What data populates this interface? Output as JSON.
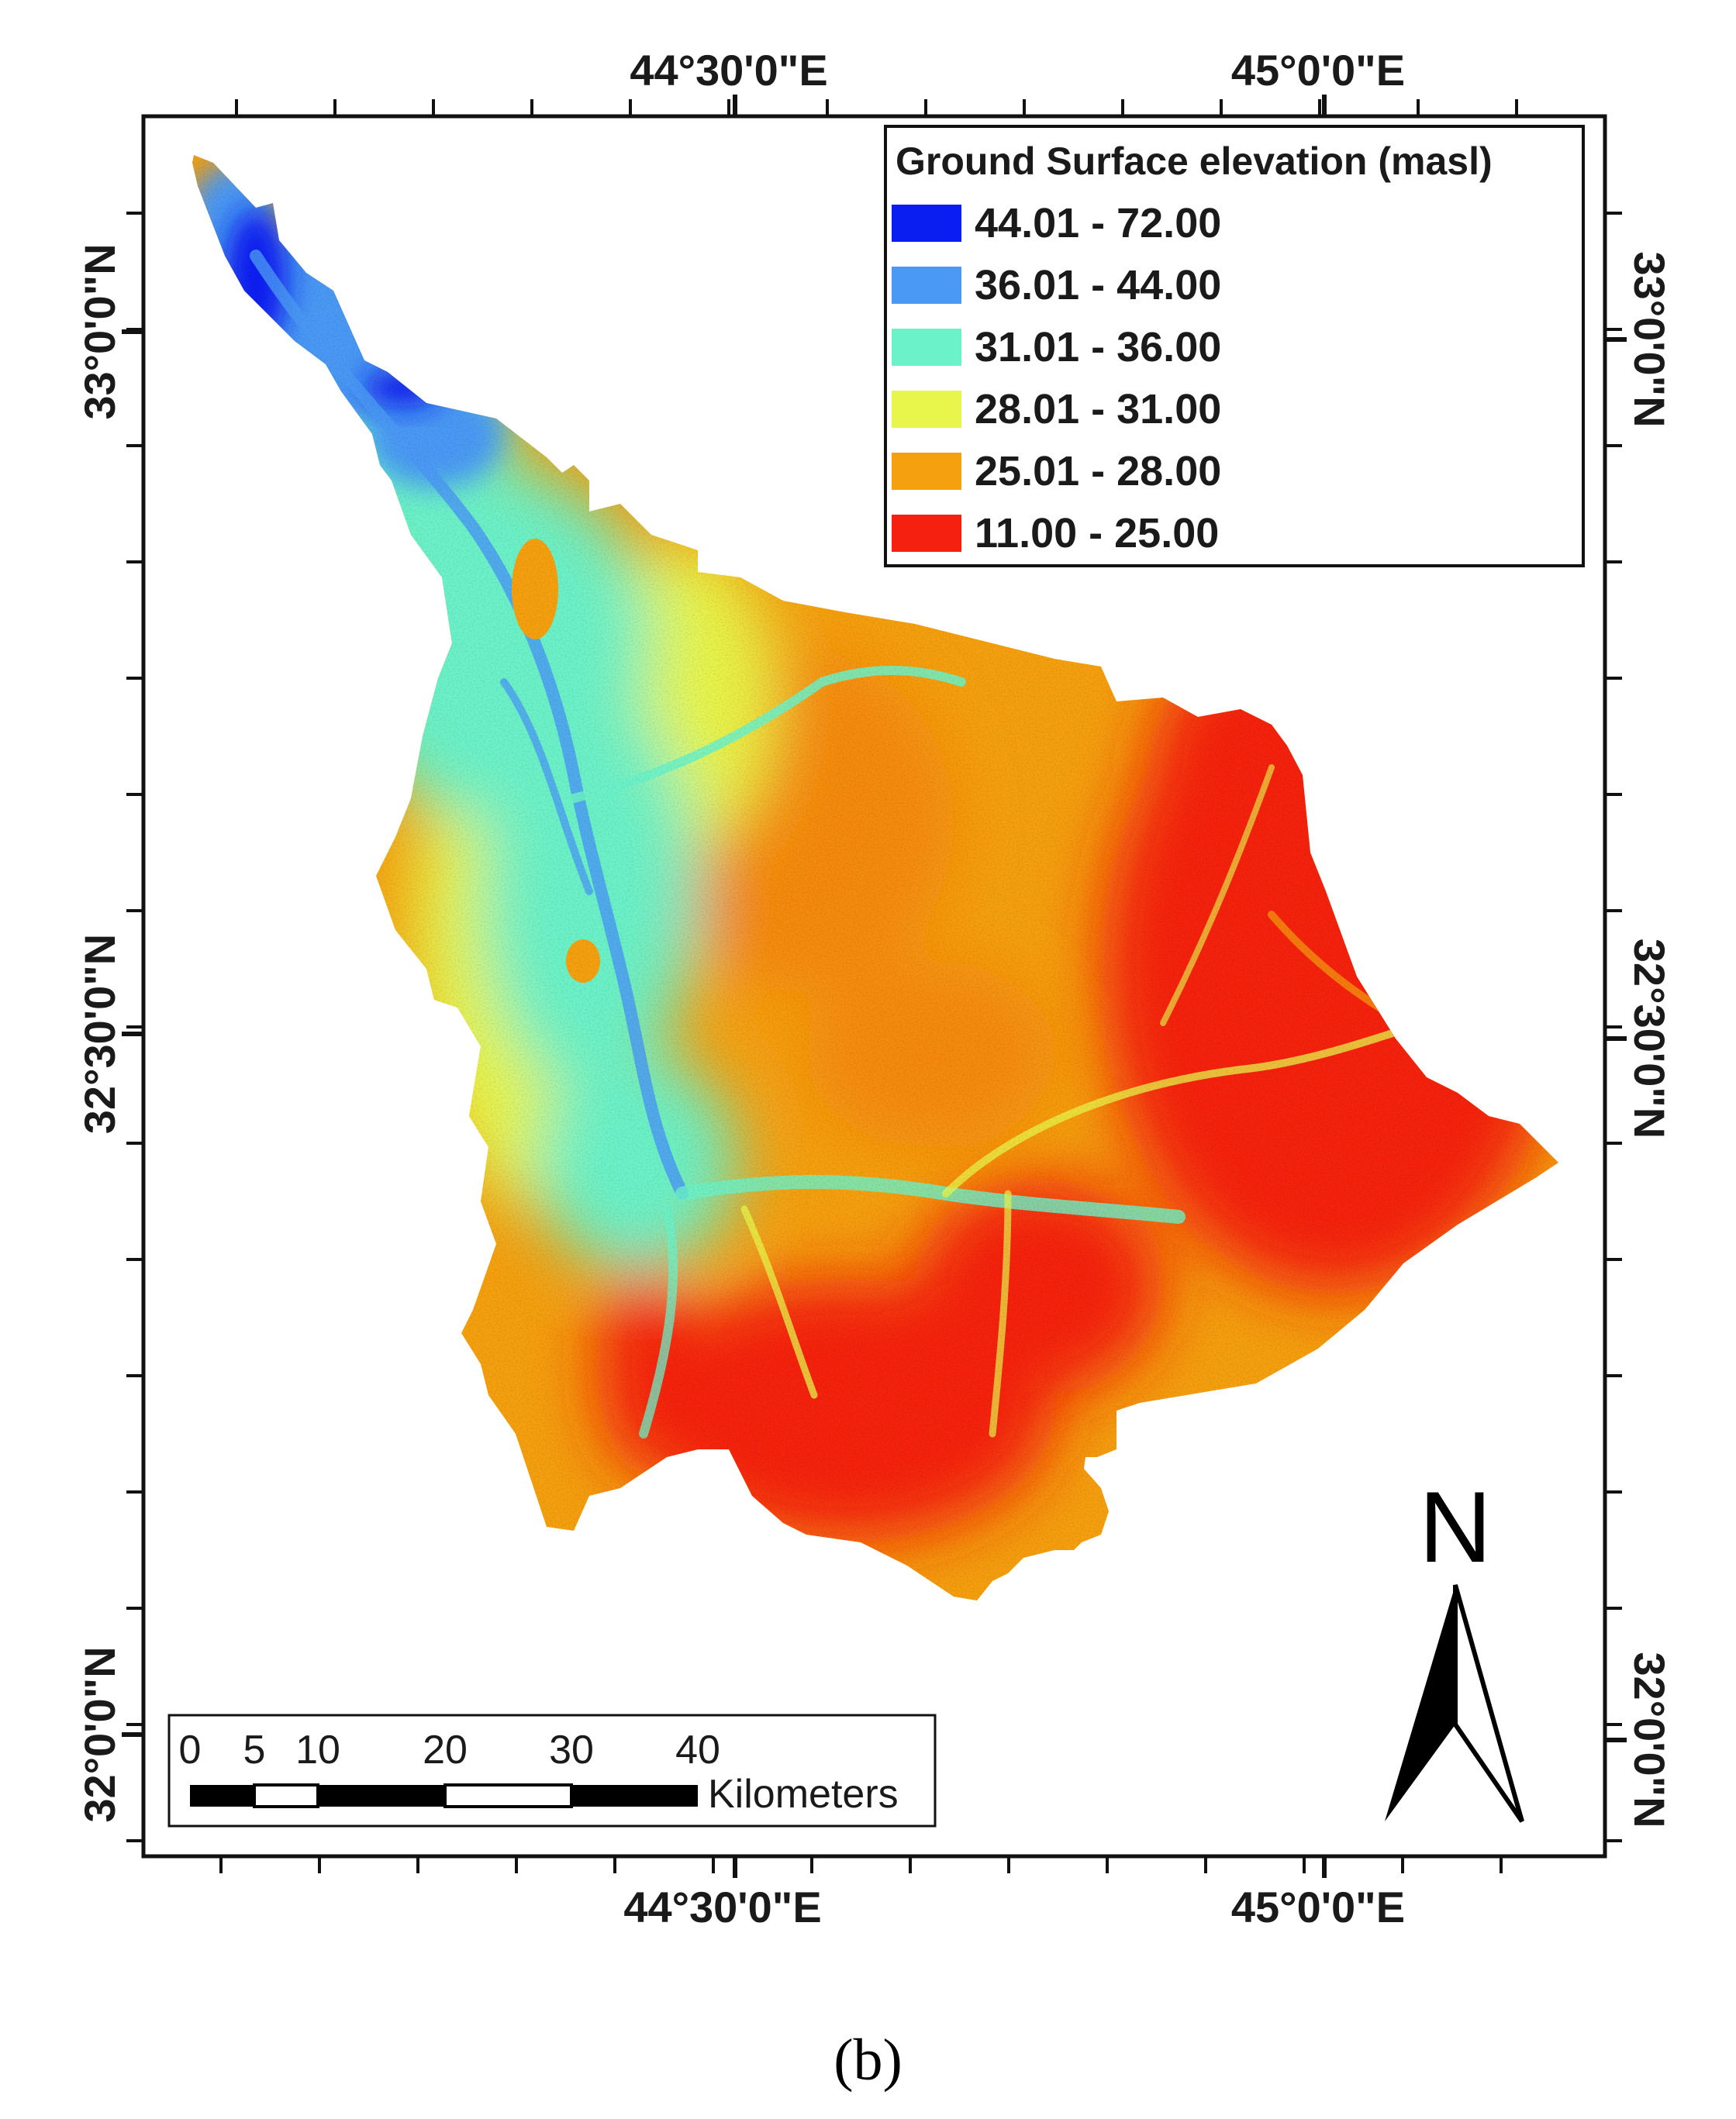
{
  "coordinates": {
    "top_x": [
      "44°30'0\"E",
      "45°0'0\"E"
    ],
    "bottom_x": [
      "44°30'0\"E",
      "45°0'0\"E"
    ],
    "left_y": [
      "33°0'0\"N",
      "32°30'0\"N",
      "32°0'0\"N"
    ],
    "right_y": [
      "33°0'0\"N",
      "32°30'0\"N",
      "32°0'0\"N"
    ]
  },
  "legend": {
    "title": "Ground Surface elevation (masl)",
    "classes": [
      {
        "label": "44.01 - 72.00",
        "color": "#0a1ef2"
      },
      {
        "label": "36.01 - 44.00",
        "color": "#4a99f5"
      },
      {
        "label": "31.01 - 36.00",
        "color": "#6cf2c8"
      },
      {
        "label": "28.01 - 31.00",
        "color": "#e8f54a"
      },
      {
        "label": "25.01 - 28.00",
        "color": "#f5a00f"
      },
      {
        "label": "11.00 - 25.00",
        "color": "#f5200f"
      }
    ]
  },
  "scale_bar": {
    "ticks": [
      "0",
      "5",
      "10",
      "20",
      "30",
      "40"
    ],
    "unit": "Kilometers"
  },
  "north_arrow": {
    "letter": "N"
  },
  "panel_label": "(b)"
}
